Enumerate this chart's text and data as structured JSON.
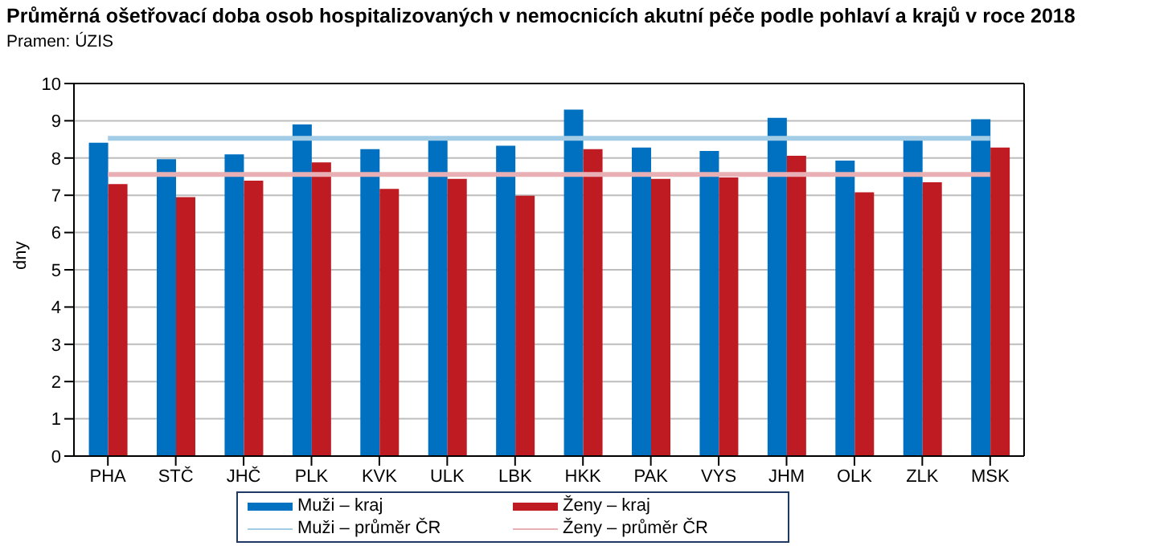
{
  "chart_data": {
    "type": "bar",
    "title": "Průměrná ošetřovací doba osob hospitalizovaných v nemocnicích akutní péče podle pohlaví a krajů v roce 2018",
    "subtitle": "Pramen: ÚZIS",
    "ylabel": "dny",
    "categories": [
      "PHA",
      "STČ",
      "JHČ",
      "PLK",
      "KVK",
      "ULK",
      "LBK",
      "HKK",
      "PAK",
      "VYS",
      "JHM",
      "OLK",
      "ZLK",
      "MSK"
    ],
    "series": [
      {
        "name": "Muži – kraj",
        "color": "#0070c0",
        "values": [
          8.41,
          7.97,
          8.1,
          8.9,
          8.24,
          8.47,
          8.33,
          9.3,
          8.28,
          8.19,
          9.08,
          7.93,
          8.47,
          9.04
        ]
      },
      {
        "name": "Ženy – kraj",
        "color": "#be1b22",
        "values": [
          7.3,
          6.95,
          7.39,
          7.88,
          7.17,
          7.44,
          6.99,
          8.24,
          7.44,
          7.48,
          8.06,
          7.08,
          7.35,
          8.28
        ]
      },
      {
        "name": "Muži – průměr ČR",
        "type": "line",
        "color": "#a3cce6",
        "values": [
          8.53,
          8.53,
          8.53,
          8.53,
          8.53,
          8.53,
          8.53,
          8.53,
          8.53,
          8.53,
          8.53,
          8.53,
          8.53,
          8.53
        ]
      },
      {
        "name": "Ženy – průměr ČR",
        "type": "line",
        "color": "#e8b0b5",
        "values": [
          7.56,
          7.56,
          7.56,
          7.56,
          7.56,
          7.56,
          7.56,
          7.56,
          7.56,
          7.56,
          7.56,
          7.56,
          7.56,
          7.56
        ]
      }
    ],
    "ylim": [
      0,
      10
    ],
    "yticks": [
      0,
      1,
      2,
      3,
      4,
      5,
      6,
      7,
      8,
      9,
      10
    ],
    "grid": "y",
    "legend": "bottom",
    "marker": "none"
  }
}
